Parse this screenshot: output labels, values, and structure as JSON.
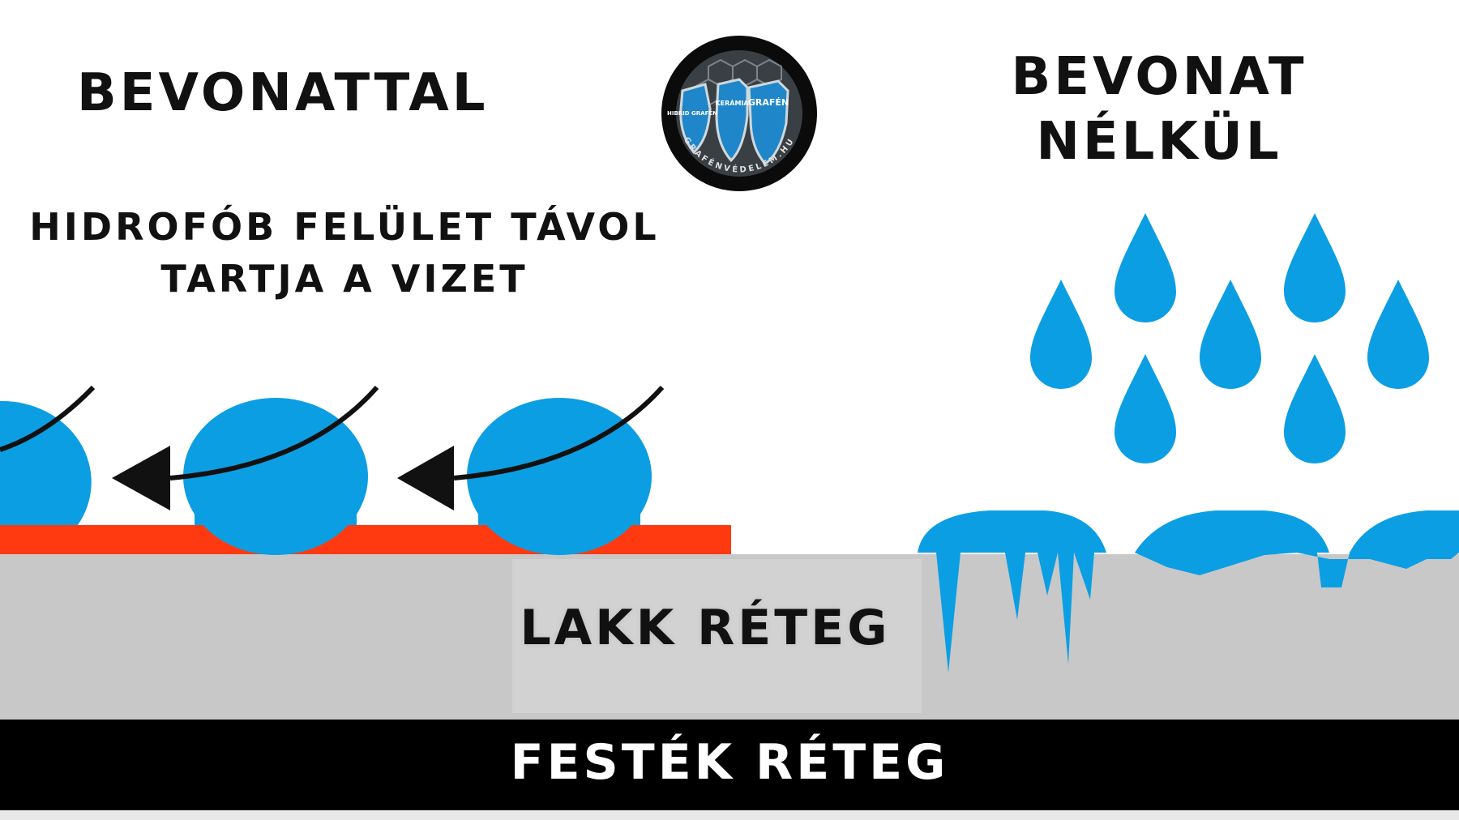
{
  "left_panel": {
    "title": "BEVONATTAL",
    "subtitle_lines": [
      "HIDROFÓB FELÜLET TÁVOL",
      "TARTJA A VIZET"
    ]
  },
  "right_panel": {
    "title_lines": [
      "BEVONAT",
      "NÉLKÜL"
    ]
  },
  "layers": {
    "lakk": "LAKK RÉTEG",
    "festek": "FESTÉK RÉTEG"
  },
  "logo": {
    "shield_texts": [
      "HIBRID GRAFÉN",
      "KERÁMIA",
      "GRAFÉN"
    ],
    "ring_text": "GRAFÉNVÉDELEM.HU"
  },
  "colors": {
    "water": "#0c9ee3",
    "coating": "#ff3a10",
    "lacquer": "#c8c8c8",
    "paint": "#000000",
    "arrow": "#111111"
  }
}
